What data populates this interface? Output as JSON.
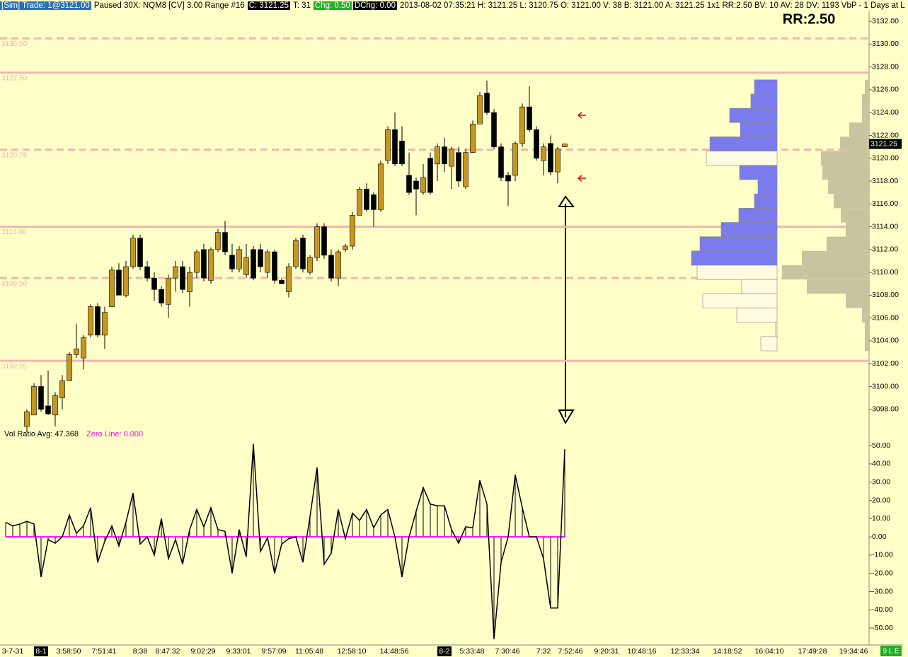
{
  "header": {
    "sim_trade": "[Sim]  Trade: 1@3121.00",
    "status": "Paused 30X: NQM8 [CV]  3.00 Range  #16",
    "close": "C: 3121.25",
    "ticks": "T: 31",
    "change": "Chg: 0.50",
    "daily_change": "DChg: 0.00",
    "info": "2013-08-02 07:35:21 H: 3121.25 L: 3120.75 O: 3121.00 V: 38 B: 3121.00 A: 3121.25 1x1 RR:2.50 BV: 10 AV: 28 DV: 1193 VbP - 1 Days at L",
    "rr": "RR:2.50"
  },
  "chart_data": [
    {
      "type": "candlestick",
      "x_labels": [
        "3-7-31",
        "8-1",
        "3:58:50",
        "7:51:41",
        "8:38",
        "8:47:32",
        "9:02:29",
        "9:33:01",
        "9:57:09",
        "11:05:48",
        "12:58:10",
        "14:48:56",
        "8-2",
        "5:33:48",
        "7:30:46",
        "7:32",
        "7:52:46",
        "9:20:31",
        "10:48:16",
        "12:33:34",
        "14:18:52",
        "16:04:10",
        "17:49:28",
        "19:34:46"
      ],
      "open": [
        3096.5,
        3097.5,
        3100,
        3098.3,
        3097.5,
        3099,
        3100.5,
        3102.8,
        3102.5,
        3104.5,
        3107,
        3104.5,
        3107,
        3110.2,
        3108,
        3110.5,
        3113,
        3110.5,
        3109.5,
        3108.5,
        3107.2,
        3109.5,
        3110.5,
        3108.3,
        3110,
        3112,
        3109.3,
        3112,
        3113.5,
        3111.5,
        3110.3,
        3109.8,
        3112,
        3112,
        3110,
        3111.8,
        3109.3,
        3108.3,
        3110.5,
        3113,
        3110,
        3111.3,
        3114,
        3111.5,
        3109.5,
        3112,
        3112.3,
        3115,
        3117.3,
        3116.8,
        3115.5,
        3119.8,
        3122.5,
        3121.5,
        3118.5,
        3118,
        3117,
        3120,
        3119.5,
        3121,
        3119.3,
        3120.5,
        3117.5,
        3120.5,
        3123,
        3125.7,
        3124,
        3121,
        3118.5,
        3118.5,
        3121.3,
        3124.5,
        3122.5,
        3119.8,
        3121.3,
        3118.8,
        3121
      ],
      "high": [
        3098,
        3100.3,
        3101,
        3101.4,
        3099.5,
        3101,
        3103,
        3105.5,
        3104.5,
        3107.2,
        3107.3,
        3107,
        3110.5,
        3110.8,
        3111,
        3113.3,
        3113.3,
        3111,
        3110,
        3108.8,
        3109.8,
        3111,
        3111,
        3110.5,
        3112,
        3112.5,
        3112.2,
        3113.8,
        3114.5,
        3112.5,
        3112.3,
        3112.5,
        3112.3,
        3112.5,
        3112,
        3112,
        3109.5,
        3110.8,
        3113,
        3113.3,
        3111.5,
        3114.3,
        3114.3,
        3112,
        3112,
        3112.5,
        3115.3,
        3117.5,
        3117.8,
        3117,
        3119.8,
        3122.8,
        3124,
        3122.8,
        3120.5,
        3118.3,
        3119.5,
        3120.5,
        3121.3,
        3121.8,
        3121,
        3121,
        3120.8,
        3123.3,
        3125.8,
        3126.8,
        3124.3,
        3121.3,
        3118.8,
        3121.5,
        3124.8,
        3126.3,
        3122.8,
        3121.3,
        3122,
        3121,
        3121.25
      ],
      "low": [
        3096,
        3097.5,
        3097.8,
        3097.5,
        3096.5,
        3098,
        3100.5,
        3102.5,
        3101.5,
        3104.3,
        3104.3,
        3103.3,
        3107,
        3108,
        3107.8,
        3110.3,
        3110.2,
        3109.2,
        3107.5,
        3107,
        3106,
        3108.3,
        3108.2,
        3107,
        3109.5,
        3109.2,
        3109,
        3111.8,
        3111.5,
        3110,
        3110,
        3109.5,
        3109.3,
        3110,
        3109.5,
        3109,
        3109,
        3107.8,
        3110.3,
        3110,
        3109.8,
        3111,
        3111.2,
        3109.2,
        3108.8,
        3111.8,
        3112,
        3115,
        3115.3,
        3114,
        3115.3,
        3119.5,
        3119.3,
        3119.3,
        3116.8,
        3115,
        3116.8,
        3116.8,
        3118,
        3118.8,
        3117.3,
        3117.5,
        3117.3,
        3120.5,
        3123,
        3123.8,
        3120.8,
        3118,
        3115.8,
        3118,
        3121,
        3122.3,
        3119.8,
        3118.5,
        3118.5,
        3117.8,
        3121
      ],
      "close": [
        3097.8,
        3100,
        3098,
        3097.6,
        3099.2,
        3100.5,
        3102.8,
        3103.3,
        3104.3,
        3107,
        3104.5,
        3106.5,
        3110.2,
        3108,
        3110.5,
        3113,
        3110.5,
        3109.5,
        3108.5,
        3107.3,
        3109.5,
        3110.5,
        3108.5,
        3110,
        3111.8,
        3109.5,
        3112,
        3113.5,
        3111.8,
        3110.3,
        3112,
        3111.3,
        3109.5,
        3110.5,
        3111.8,
        3109.3,
        3109,
        3110.5,
        3112.8,
        3110.3,
        3111.3,
        3114,
        3111.5,
        3109.5,
        3111.8,
        3112.3,
        3115,
        3117.3,
        3115.5,
        3115.5,
        3119.5,
        3122.5,
        3119.5,
        3119.5,
        3117,
        3117.3,
        3118.3,
        3117,
        3121,
        3119.5,
        3120.8,
        3118,
        3120.5,
        3123,
        3125.5,
        3124,
        3121,
        3118.3,
        3118,
        3121.3,
        3124.5,
        3122.5,
        3120,
        3121,
        3118.8,
        3120.8,
        3121.25
      ],
      "up_color": "#c8961e",
      "down_color": "#000000",
      "ylim": [
        3096.25,
        3132.75
      ],
      "yticks": [
        {
          "value": 3132,
          "label": "3132.00"
        },
        {
          "value": 3130,
          "label": "3130.00"
        },
        {
          "value": 3128,
          "label": "3128.00"
        },
        {
          "value": 3126,
          "label": "3126.00"
        },
        {
          "value": 3124,
          "label": "3124.00"
        },
        {
          "value": 3122,
          "label": "3122.00"
        },
        {
          "value": 3120,
          "label": "3120.00"
        },
        {
          "value": 3118,
          "label": "3118.00"
        },
        {
          "value": 3116,
          "label": "3116.00"
        },
        {
          "value": 3114,
          "label": "3114.00"
        },
        {
          "value": 3112,
          "label": "3112.00"
        },
        {
          "value": 3110,
          "label": "3110.00"
        },
        {
          "value": 3108,
          "label": "3108.00"
        },
        {
          "value": 3106,
          "label": "3106.00"
        },
        {
          "value": 3104,
          "label": "3104.00"
        },
        {
          "value": 3102,
          "label": "3102.00"
        },
        {
          "value": 3100,
          "label": "3100.00"
        },
        {
          "value": 3098,
          "label": "3098.00"
        }
      ],
      "levels": [
        {
          "value": 3130.5,
          "label": "3130.50",
          "style": "dashed"
        },
        {
          "value": 3127.5,
          "label": "3127.50",
          "style": "solid"
        },
        {
          "value": 3120.75,
          "label": "3120.75",
          "style": "dashed"
        },
        {
          "value": 3114,
          "label": "3114.00",
          "style": "solid"
        },
        {
          "value": 3109.5,
          "label": "3109.50",
          "style": "dashed"
        },
        {
          "value": 3102.25,
          "label": "3102.25",
          "style": "solid"
        }
      ],
      "level_color": "#f4b4b4",
      "last_price": {
        "value": 3121.25,
        "label": "3121.25"
      },
      "profile_prices": [
        3126.25,
        3125,
        3123.75,
        3122.5,
        3121.25,
        3120,
        3118.75,
        3117.5,
        3116.25,
        3115,
        3113.75,
        3112.5,
        3111.25,
        3110,
        3108.75,
        3107.5,
        3106.25,
        3105,
        3103.75
      ],
      "profile_volume": [
        32,
        37,
        67,
        52,
        95,
        100,
        53,
        27,
        32,
        54,
        79,
        109,
        121,
        113,
        50,
        105,
        57,
        2,
        23
      ],
      "profile_colors": [
        "#7b7bee",
        "#7b7bee",
        "#7b7bee",
        "#7b7bee",
        "#7b7bee",
        "#fffbe0",
        "#7b7bee",
        "#7b7bee",
        "#7b7bee",
        "#7b7bee",
        "#7b7bee",
        "#7b7bee",
        "#7b7bee",
        "#fffbe0",
        "#fffbe0",
        "#fffbe0",
        "#fffbe0",
        "#fffbe0",
        "#fffbe0"
      ],
      "session_profile_volume": [
        6,
        10,
        10,
        28,
        41,
        68,
        66,
        58,
        50,
        40,
        33,
        60,
        95,
        123,
        88,
        33,
        10,
        6,
        6
      ],
      "session_profile_color": "#c8c4a0"
    },
    {
      "type": "line",
      "title": "Vol Ratio Avg: 47.368",
      "zero_line_label": "Zero Line: 0.000",
      "values": [
        8,
        6,
        7,
        8.5,
        7,
        -22,
        -1.5,
        -3.5,
        0,
        12,
        2,
        6,
        16,
        -14,
        -2.5,
        6,
        -5,
        8,
        24,
        -4,
        0,
        -10,
        10,
        -12,
        -1.5,
        -15,
        4,
        15,
        5.5,
        16,
        4,
        3,
        -20,
        4,
        -11,
        51,
        -8,
        -0.5,
        -20,
        -4,
        -1,
        0,
        -14,
        11,
        38,
        -15,
        -9,
        15,
        -1,
        13,
        9,
        15,
        5,
        12,
        15,
        0,
        -22,
        0,
        14,
        27,
        18,
        17,
        17,
        4,
        -3.5,
        5.5,
        5,
        31,
        18,
        -56,
        -14,
        0,
        34,
        16,
        0,
        0,
        -12,
        -39,
        -39,
        48
      ],
      "color": "#000000",
      "zero_color": "#ff00ff",
      "ylim": [
        -58.5,
        52
      ],
      "yticks": [
        {
          "value": 50,
          "label": "50.00"
        },
        {
          "value": 40,
          "label": "40.00"
        },
        {
          "value": 30,
          "label": "30.00"
        },
        {
          "value": 20,
          "label": "20.00"
        },
        {
          "value": 10,
          "label": "10.00"
        },
        {
          "value": 0,
          "label": "0.00"
        },
        {
          "value": -10,
          "label": "-10.00"
        },
        {
          "value": -20,
          "label": "-20.00"
        },
        {
          "value": -30,
          "label": "-30.00"
        },
        {
          "value": -40,
          "label": "-40.00"
        },
        {
          "value": -50,
          "label": "-50.00"
        }
      ]
    }
  ],
  "status_badge": "9 L E"
}
